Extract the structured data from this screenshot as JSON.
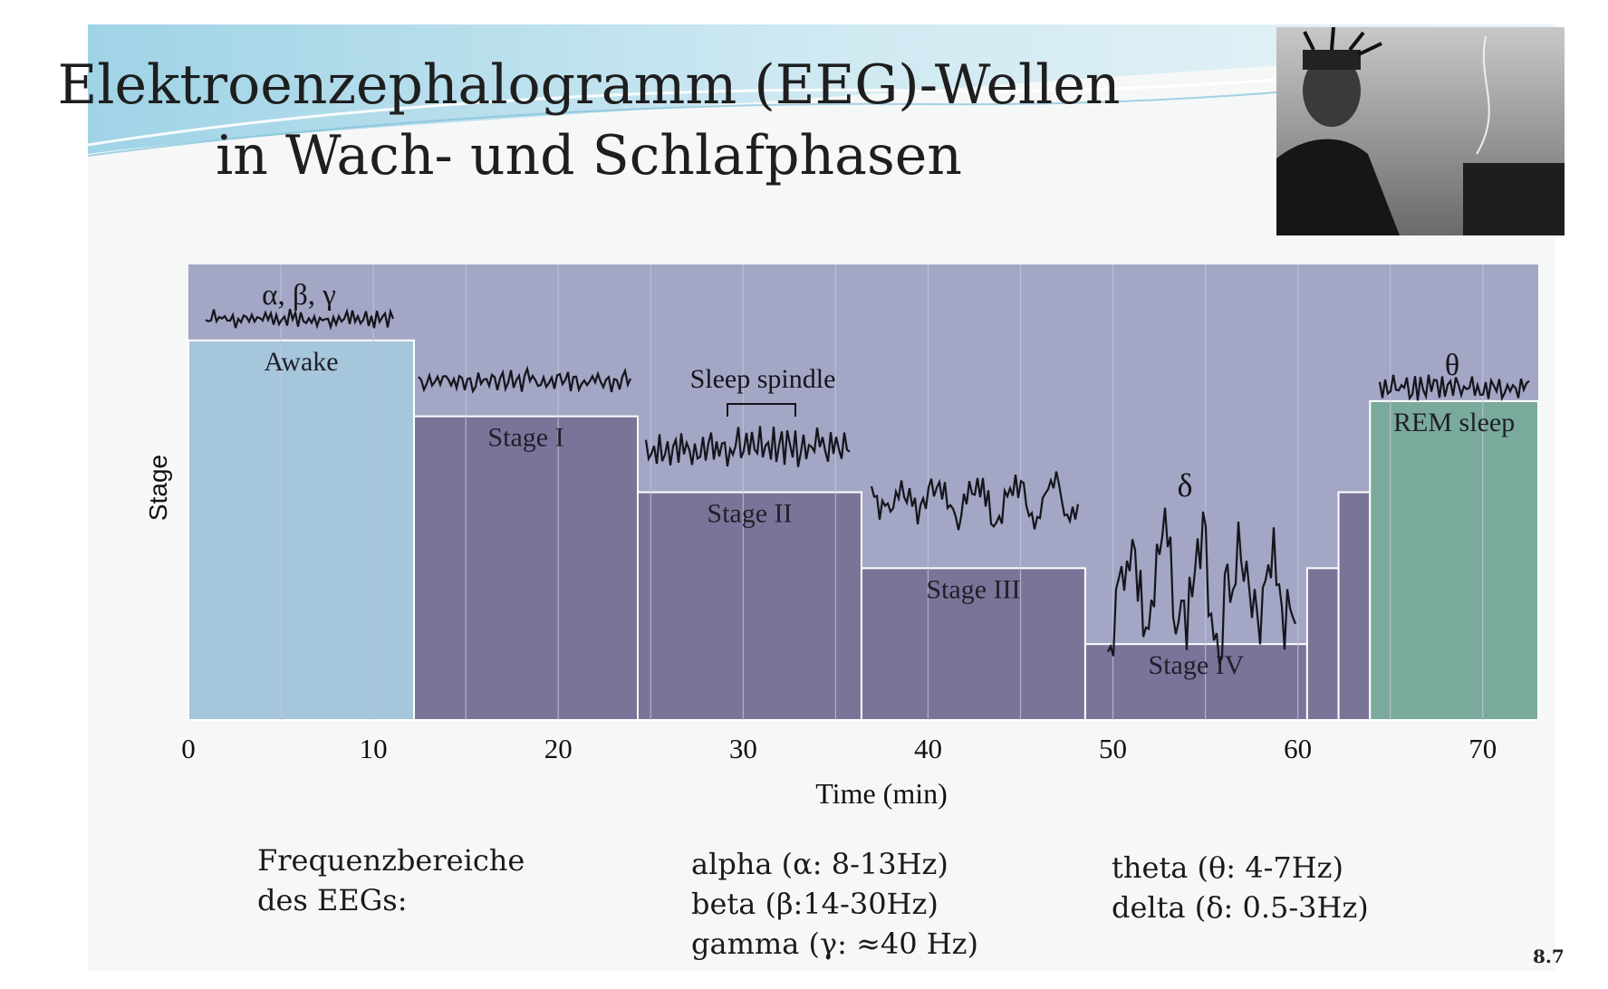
{
  "slide": {
    "title_line1": "Elektroenzephalogramm (EEG)-Wellen",
    "title_line2": "in Wach- und Schlafphasen",
    "slide_number": "8.7"
  },
  "frequency_ranges": {
    "heading_line1": "Frequenzbereiche",
    "heading_line2": "des EEGs:",
    "column1": [
      "alpha (α: 8-13Hz)",
      "beta (β:14-30Hz)",
      "gamma (γ: ≈40 Hz)"
    ],
    "column2": [
      "theta (θ: 4-7Hz)",
      "delta (δ: 0.5-3Hz)"
    ]
  },
  "colors": {
    "plot_background": "#a3a6c4",
    "stage_fill": "#7b7499",
    "awake_fill": "#a6c6dc",
    "rem_fill": "#7aaa9c",
    "outline": "#ffffff"
  },
  "chart_data": {
    "type": "area",
    "xlabel": "Time (min)",
    "ylabel": "Stage",
    "xlim": [
      0,
      73
    ],
    "x_ticks": [
      0,
      10,
      20,
      30,
      40,
      50,
      60,
      70
    ],
    "grid": "vertical, every 5 min",
    "stage_levels": {
      "Awake": 5,
      "REM sleep": 4.2,
      "Stage I": 4,
      "Stage II": 3,
      "Stage III": 2,
      "Stage IV": 1
    },
    "series": [
      {
        "label": "Awake",
        "start": 0,
        "end": 12.2,
        "level": 5,
        "color": "#a6c6dc"
      },
      {
        "label": "Stage I",
        "start": 12.2,
        "end": 24.3,
        "level": 4,
        "color": "#7b7499"
      },
      {
        "label": "Stage II",
        "start": 24.3,
        "end": 36.4,
        "level": 3,
        "color": "#7b7499"
      },
      {
        "label": "Stage III",
        "start": 36.4,
        "end": 48.5,
        "level": 2,
        "color": "#7b7499"
      },
      {
        "label": "Stage IV",
        "start": 48.5,
        "end": 60.5,
        "level": 1,
        "color": "#7b7499"
      },
      {
        "label": "",
        "start": 60.5,
        "end": 62.2,
        "level": 2,
        "color": "#7b7499"
      },
      {
        "label": "",
        "start": 62.2,
        "end": 63.9,
        "level": 3,
        "color": "#7b7499"
      },
      {
        "label": "REM sleep",
        "start": 63.9,
        "end": 73,
        "level": 4.2,
        "color": "#7aaa9c"
      }
    ],
    "wave_annotations": [
      {
        "label": "α, β, γ",
        "stage": "Awake"
      },
      {
        "label": "Sleep spindle",
        "stage": "Stage II"
      },
      {
        "label": "δ",
        "stage": "Stage IV"
      },
      {
        "label": "θ",
        "stage": "REM sleep"
      }
    ]
  }
}
